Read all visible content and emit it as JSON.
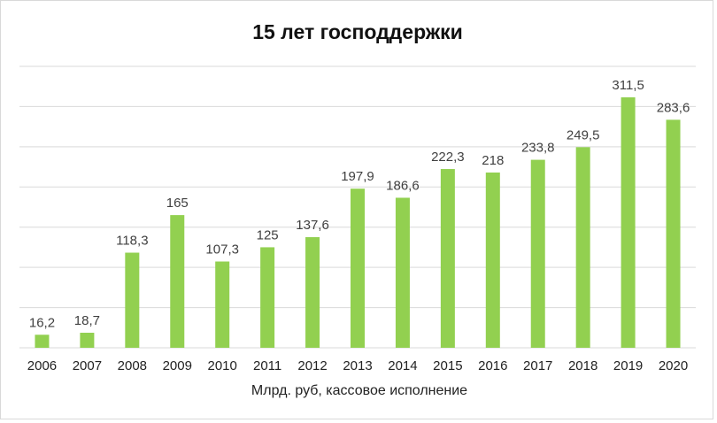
{
  "chart_data": {
    "type": "bar",
    "title": "15 лет господдержки",
    "xlabel": "Млрд. руб, кассовое исполнение",
    "ylabel": "",
    "categories": [
      "2006",
      "2007",
      "2008",
      "2009",
      "2010",
      "2011",
      "2012",
      "2013",
      "2014",
      "2015",
      "2016",
      "2017",
      "2018",
      "2019",
      "2020"
    ],
    "values": [
      16.2,
      18.7,
      118.3,
      165,
      107.3,
      125,
      137.6,
      197.9,
      186.6,
      222.3,
      218,
      233.8,
      249.5,
      311.5,
      283.6
    ],
    "value_labels": [
      "16,2",
      "18,7",
      "118,3",
      "165",
      "107,3",
      "125",
      "137,6",
      "197,9",
      "186,6",
      "222,3",
      "218",
      "233,8",
      "249,5",
      "311,5",
      "283,6"
    ],
    "ylim": [
      0,
      350
    ],
    "grid": true,
    "legend": "none",
    "colors": {
      "bar": "#92d050",
      "grid": "#d9d9d9",
      "text": "#404040"
    }
  }
}
